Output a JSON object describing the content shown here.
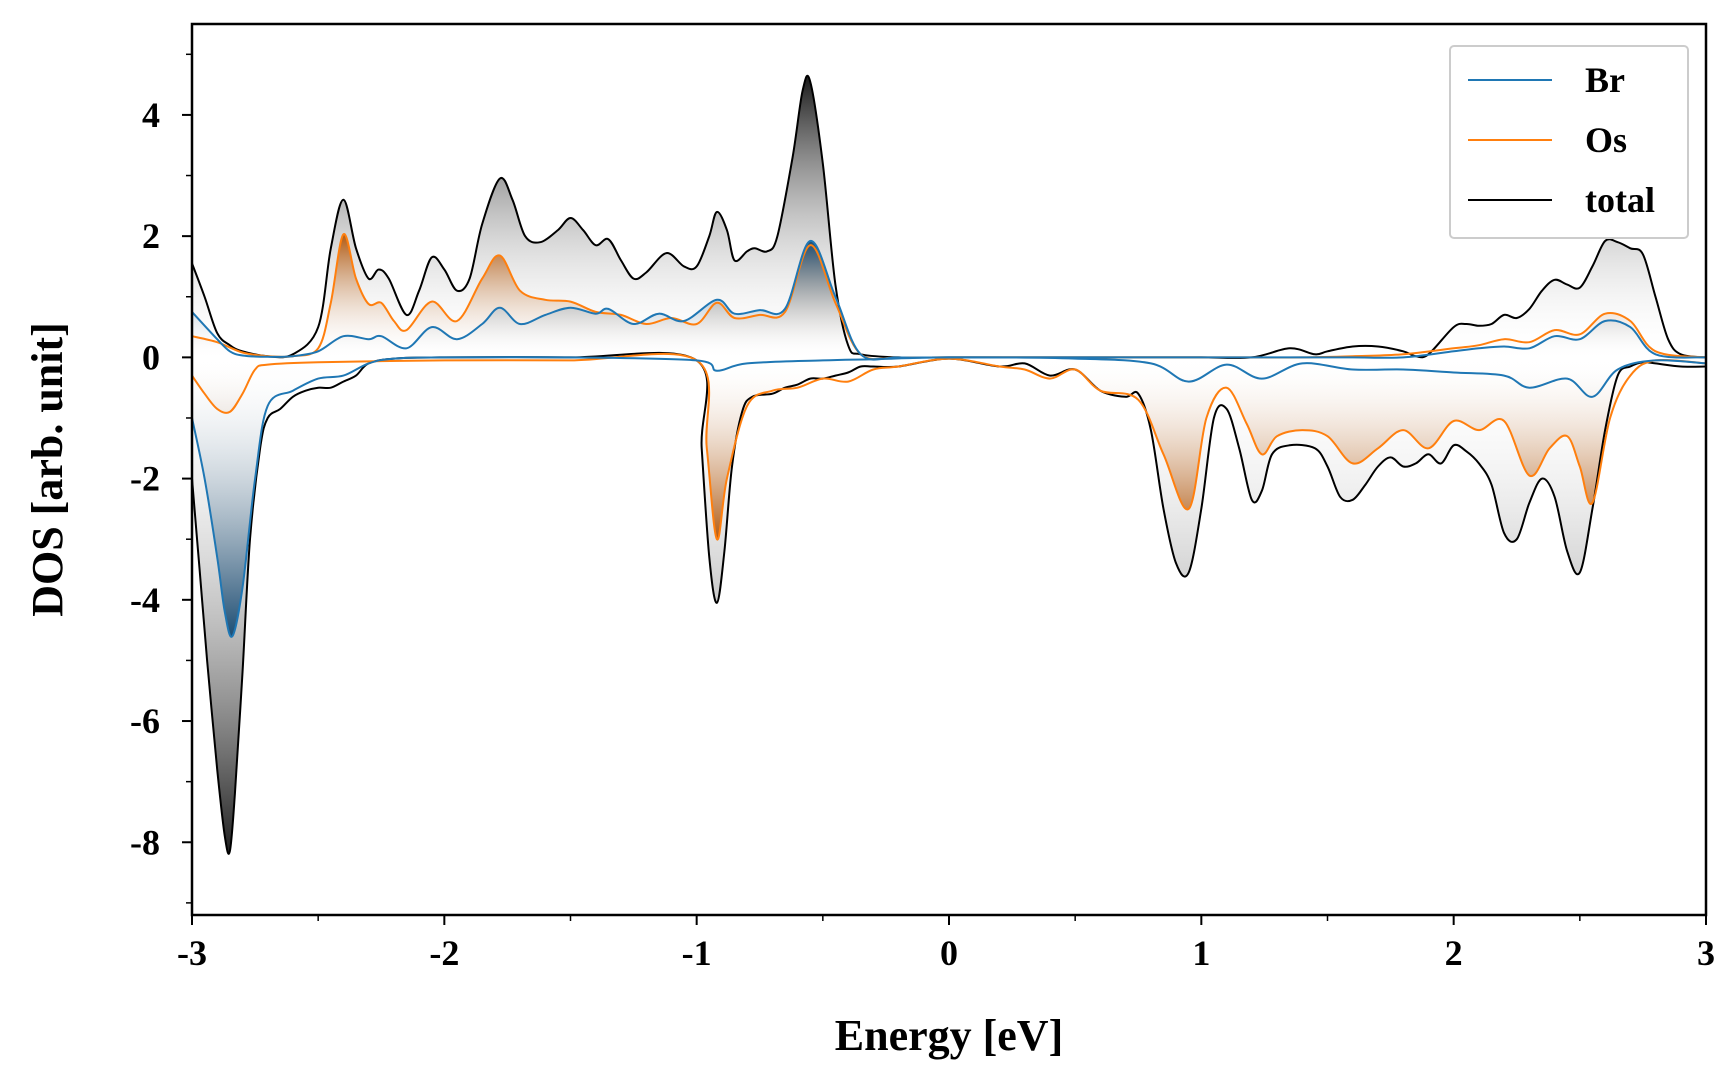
{
  "chart_data": {
    "type": "area",
    "title": "",
    "xlabel": "Energy [eV]",
    "ylabel": "DOS [arb. unit]",
    "xlim": [
      -3,
      3
    ],
    "ylim": [
      -9.2,
      5.5
    ],
    "xticks": [
      -3,
      -2,
      -1,
      0,
      1,
      2,
      3
    ],
    "xtick_labels": [
      "-3",
      "-2",
      "-1",
      "0",
      "1",
      "2",
      "3"
    ],
    "yticks": [
      -8,
      -6,
      -4,
      -2,
      0,
      2,
      4
    ],
    "ytick_labels": [
      "-8",
      "-6",
      "-4",
      "-2",
      "0",
      "2",
      "4"
    ],
    "grid": false,
    "legend": {
      "position": "top-right",
      "entries": [
        "Br",
        "Os",
        "total"
      ]
    },
    "colors": {
      "Br": "#1f77b4",
      "Os": "#ff7f0e",
      "total": "#000000",
      "Br_fill": "#1d4e75",
      "Os_fill": "#b35a10",
      "total_fill": "#222222"
    },
    "series": [
      {
        "name": "Br",
        "up_x": [
          -3.0,
          -2.9,
          -2.85,
          -2.8,
          -2.7,
          -2.6,
          -2.5,
          -2.4,
          -2.3,
          -2.25,
          -2.15,
          -2.05,
          -1.95,
          -1.85,
          -1.78,
          -1.7,
          -1.6,
          -1.5,
          -1.4,
          -1.35,
          -1.25,
          -1.15,
          -1.05,
          -0.92,
          -0.85,
          -0.75,
          -0.65,
          -0.55,
          -0.45,
          -0.35,
          -0.2,
          0.0,
          0.5,
          0.8,
          1.0,
          1.2,
          1.4,
          1.6,
          1.8,
          2.0,
          2.1,
          2.2,
          2.3,
          2.4,
          2.5,
          2.6,
          2.7,
          2.8,
          3.0
        ],
        "up_y": [
          0.75,
          0.3,
          0.1,
          0.03,
          0.01,
          0.02,
          0.1,
          0.35,
          0.3,
          0.35,
          0.15,
          0.5,
          0.3,
          0.55,
          0.82,
          0.55,
          0.7,
          0.82,
          0.72,
          0.8,
          0.55,
          0.72,
          0.6,
          0.95,
          0.72,
          0.78,
          0.8,
          1.92,
          1.0,
          0.05,
          0.0,
          0.0,
          0.0,
          0.0,
          0.0,
          0.0,
          0.0,
          0.0,
          0.0,
          0.1,
          0.15,
          0.18,
          0.15,
          0.35,
          0.3,
          0.6,
          0.5,
          0.05,
          0.0
        ],
        "dn_x": [
          -3.0,
          -2.95,
          -2.9,
          -2.87,
          -2.84,
          -2.8,
          -2.75,
          -2.7,
          -2.6,
          -2.5,
          -2.4,
          -2.3,
          -2.2,
          -2.0,
          -1.5,
          -1.0,
          -0.92,
          -0.8,
          -0.5,
          -0.3,
          0.0,
          0.5,
          0.8,
          0.95,
          1.1,
          1.24,
          1.4,
          1.6,
          1.8,
          2.0,
          2.2,
          2.3,
          2.45,
          2.55,
          2.65,
          2.8,
          3.0
        ],
        "dn_y": [
          -1.0,
          -2.0,
          -3.3,
          -4.2,
          -4.6,
          -3.8,
          -2.0,
          -0.8,
          -0.55,
          -0.35,
          -0.3,
          -0.1,
          -0.02,
          0.0,
          0.0,
          -0.05,
          -0.22,
          -0.1,
          -0.05,
          -0.03,
          0.0,
          -0.02,
          -0.1,
          -0.4,
          -0.12,
          -0.35,
          -0.1,
          -0.2,
          -0.2,
          -0.25,
          -0.3,
          -0.5,
          -0.35,
          -0.65,
          -0.2,
          -0.05,
          -0.1
        ]
      },
      {
        "name": "Os",
        "up_x": [
          -3.0,
          -2.9,
          -2.8,
          -2.7,
          -2.6,
          -2.5,
          -2.45,
          -2.4,
          -2.35,
          -2.3,
          -2.25,
          -2.2,
          -2.15,
          -2.05,
          -1.95,
          -1.85,
          -1.78,
          -1.7,
          -1.6,
          -1.5,
          -1.4,
          -1.3,
          -1.2,
          -1.1,
          -1.0,
          -0.92,
          -0.85,
          -0.75,
          -0.65,
          -0.55,
          -0.45,
          -0.35,
          -0.2,
          0.0,
          0.5,
          0.8,
          1.0,
          1.2,
          1.4,
          1.6,
          1.8,
          2.0,
          2.1,
          2.2,
          2.3,
          2.4,
          2.5,
          2.6,
          2.7,
          2.8,
          3.0
        ],
        "up_y": [
          0.35,
          0.25,
          0.08,
          0.02,
          0.02,
          0.15,
          0.9,
          2.03,
          1.3,
          0.88,
          0.9,
          0.6,
          0.45,
          0.92,
          0.6,
          1.3,
          1.68,
          1.1,
          0.95,
          0.92,
          0.75,
          0.7,
          0.55,
          0.65,
          0.55,
          0.9,
          0.65,
          0.7,
          0.75,
          1.85,
          0.9,
          0.05,
          0.0,
          0.0,
          0.0,
          0.0,
          0.0,
          0.0,
          0.0,
          0.02,
          0.05,
          0.15,
          0.2,
          0.3,
          0.25,
          0.45,
          0.38,
          0.72,
          0.6,
          0.1,
          0.0
        ],
        "dn_x": [
          -3.0,
          -2.95,
          -2.9,
          -2.85,
          -2.8,
          -2.75,
          -2.7,
          -2.5,
          -2.0,
          -1.5,
          -1.0,
          -0.96,
          -0.92,
          -0.88,
          -0.8,
          -0.7,
          -0.6,
          -0.5,
          -0.4,
          -0.3,
          -0.2,
          0.0,
          0.2,
          0.3,
          0.4,
          0.5,
          0.6,
          0.75,
          0.85,
          0.95,
          1.02,
          1.1,
          1.18,
          1.24,
          1.3,
          1.4,
          1.5,
          1.6,
          1.7,
          1.8,
          1.9,
          2.0,
          2.1,
          2.2,
          2.3,
          2.38,
          2.45,
          2.5,
          2.55,
          2.62,
          2.7,
          2.8,
          3.0
        ],
        "dn_y": [
          -0.3,
          -0.6,
          -0.85,
          -0.9,
          -0.6,
          -0.2,
          -0.12,
          -0.08,
          -0.05,
          -0.05,
          -0.05,
          -1.5,
          -3.0,
          -2.0,
          -0.8,
          -0.55,
          -0.5,
          -0.35,
          -0.4,
          -0.2,
          -0.15,
          -0.02,
          -0.15,
          -0.2,
          -0.35,
          -0.2,
          -0.55,
          -0.7,
          -1.6,
          -2.5,
          -1.0,
          -0.5,
          -1.1,
          -1.6,
          -1.3,
          -1.2,
          -1.3,
          -1.75,
          -1.5,
          -1.2,
          -1.5,
          -1.05,
          -1.2,
          -1.05,
          -1.95,
          -1.5,
          -1.3,
          -1.8,
          -2.4,
          -1.0,
          -0.3,
          -0.05,
          -0.1
        ]
      },
      {
        "name": "total",
        "up_x": [
          -3.0,
          -2.95,
          -2.9,
          -2.85,
          -2.8,
          -2.7,
          -2.6,
          -2.5,
          -2.45,
          -2.4,
          -2.35,
          -2.3,
          -2.26,
          -2.22,
          -2.15,
          -2.1,
          -2.05,
          -2.0,
          -1.95,
          -1.9,
          -1.85,
          -1.78,
          -1.73,
          -1.68,
          -1.62,
          -1.55,
          -1.5,
          -1.45,
          -1.4,
          -1.35,
          -1.3,
          -1.25,
          -1.2,
          -1.12,
          -1.05,
          -1.0,
          -0.95,
          -0.92,
          -0.88,
          -0.85,
          -0.8,
          -0.77,
          -0.72,
          -0.68,
          -0.62,
          -0.58,
          -0.55,
          -0.5,
          -0.45,
          -0.4,
          -0.35,
          -0.2,
          0.0,
          0.5,
          0.8,
          1.0,
          1.2,
          1.35,
          1.45,
          1.5,
          1.6,
          1.7,
          1.8,
          1.85,
          1.9,
          2.0,
          2.05,
          2.1,
          2.15,
          2.2,
          2.25,
          2.3,
          2.35,
          2.4,
          2.45,
          2.5,
          2.55,
          2.6,
          2.65,
          2.7,
          2.75,
          2.8,
          2.85,
          2.9,
          3.0
        ],
        "up_y": [
          1.55,
          1.0,
          0.4,
          0.2,
          0.1,
          0.02,
          0.05,
          0.5,
          1.8,
          2.6,
          1.8,
          1.3,
          1.45,
          1.3,
          0.7,
          1.1,
          1.65,
          1.45,
          1.1,
          1.3,
          2.2,
          2.95,
          2.6,
          2.0,
          1.9,
          2.1,
          2.3,
          2.1,
          1.85,
          1.95,
          1.6,
          1.3,
          1.4,
          1.72,
          1.5,
          1.5,
          2.0,
          2.4,
          2.1,
          1.6,
          1.75,
          1.8,
          1.75,
          2.0,
          3.3,
          4.4,
          4.55,
          3.2,
          1.2,
          0.2,
          0.05,
          0.0,
          0.0,
          0.0,
          0.0,
          0.0,
          0.0,
          0.15,
          0.05,
          0.1,
          0.18,
          0.18,
          0.1,
          0.02,
          0.05,
          0.5,
          0.55,
          0.52,
          0.55,
          0.7,
          0.65,
          0.8,
          1.1,
          1.28,
          1.2,
          1.15,
          1.5,
          1.92,
          1.9,
          1.8,
          1.7,
          1.0,
          0.3,
          0.05,
          0.0
        ],
        "dn_x": [
          -3.0,
          -2.97,
          -2.94,
          -2.9,
          -2.87,
          -2.85,
          -2.83,
          -2.8,
          -2.77,
          -2.73,
          -2.7,
          -2.65,
          -2.6,
          -2.55,
          -2.5,
          -2.45,
          -2.4,
          -2.35,
          -2.3,
          -2.2,
          -2.0,
          -1.5,
          -1.0,
          -0.98,
          -0.95,
          -0.92,
          -0.89,
          -0.86,
          -0.82,
          -0.78,
          -0.7,
          -0.65,
          -0.6,
          -0.55,
          -0.5,
          -0.45,
          -0.4,
          -0.35,
          -0.3,
          -0.2,
          0.0,
          0.2,
          0.3,
          0.4,
          0.5,
          0.6,
          0.7,
          0.75,
          0.8,
          0.85,
          0.9,
          0.95,
          1.0,
          1.05,
          1.1,
          1.15,
          1.2,
          1.24,
          1.28,
          1.35,
          1.45,
          1.5,
          1.55,
          1.6,
          1.65,
          1.7,
          1.75,
          1.8,
          1.85,
          1.9,
          1.95,
          2.0,
          2.05,
          2.1,
          2.15,
          2.2,
          2.25,
          2.3,
          2.35,
          2.4,
          2.45,
          2.5,
          2.55,
          2.6,
          2.65,
          2.7,
          2.75,
          2.8,
          2.9,
          3.0
        ],
        "dn_y": [
          -2.0,
          -3.5,
          -5.0,
          -6.8,
          -7.9,
          -8.15,
          -7.2,
          -5.2,
          -3.0,
          -1.5,
          -1.0,
          -0.85,
          -0.65,
          -0.55,
          -0.5,
          -0.5,
          -0.4,
          -0.3,
          -0.1,
          -0.02,
          0.0,
          0.0,
          -0.05,
          -1.5,
          -3.3,
          -4.05,
          -3.2,
          -1.8,
          -0.9,
          -0.65,
          -0.6,
          -0.5,
          -0.45,
          -0.35,
          -0.35,
          -0.3,
          -0.25,
          -0.15,
          -0.15,
          -0.15,
          -0.02,
          -0.15,
          -0.1,
          -0.3,
          -0.2,
          -0.55,
          -0.65,
          -0.6,
          -1.2,
          -2.5,
          -3.4,
          -3.55,
          -2.5,
          -1.0,
          -0.85,
          -1.5,
          -2.35,
          -2.2,
          -1.6,
          -1.45,
          -1.5,
          -1.8,
          -2.3,
          -2.35,
          -2.1,
          -1.8,
          -1.65,
          -1.8,
          -1.75,
          -1.6,
          -1.75,
          -1.45,
          -1.55,
          -1.75,
          -2.1,
          -2.9,
          -3.0,
          -2.4,
          -2.0,
          -2.3,
          -3.2,
          -3.55,
          -2.5,
          -1.2,
          -0.3,
          -0.15,
          -0.08,
          -0.1,
          -0.15,
          -0.15
        ]
      }
    ]
  }
}
